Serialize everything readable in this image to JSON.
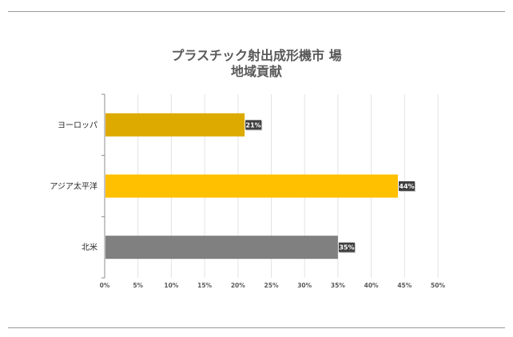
{
  "chart_data": {
    "type": "bar",
    "orientation": "horizontal",
    "title_line1": "プラスチック射出成形機市 場",
    "title_line2": "地域貢献",
    "categories": [
      "ヨーロッパ",
      "アジア太平洋",
      "北米"
    ],
    "values": [
      21,
      44,
      35
    ],
    "data_labels": [
      "21%",
      "44%",
      "35%"
    ],
    "colors": [
      "#DDAA00",
      "#FFC000",
      "#808080"
    ],
    "label_bg": "#404040",
    "xlim": [
      0,
      50
    ],
    "xticks": [
      "0%",
      "5%",
      "10%",
      "15%",
      "20%",
      "25%",
      "30%",
      "35%",
      "40%",
      "45%",
      "50%"
    ],
    "grid": true,
    "legend": "none"
  }
}
